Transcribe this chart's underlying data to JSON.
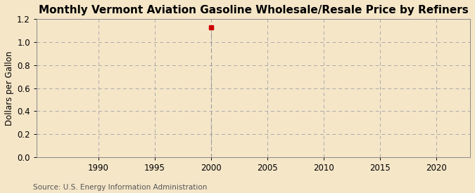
{
  "title": "Monthly Vermont Aviation Gasoline Wholesale/Resale Price by Refiners",
  "ylabel": "Dollars per Gallon",
  "source": "Source: U.S. Energy Information Administration",
  "background_color": "#f5e6c8",
  "xlim": [
    1984.5,
    2023
  ],
  "ylim": [
    0.0,
    1.2
  ],
  "xticks": [
    1990,
    1995,
    2000,
    2005,
    2010,
    2015,
    2020
  ],
  "xtick_labels": [
    "1990",
    "1995",
    "2000",
    "2005",
    "2010",
    "2015",
    "2020"
  ],
  "yticks": [
    0.0,
    0.2,
    0.4,
    0.6,
    0.8,
    1.0,
    1.2
  ],
  "data_x": [
    2000.0
  ],
  "data_y": [
    1.13
  ],
  "point_color": "#cc0000",
  "vline_color": "#999999",
  "grid_color": "#aaaaaa",
  "title_fontsize": 11,
  "label_fontsize": 8.5,
  "tick_fontsize": 8.5,
  "source_fontsize": 7.5
}
